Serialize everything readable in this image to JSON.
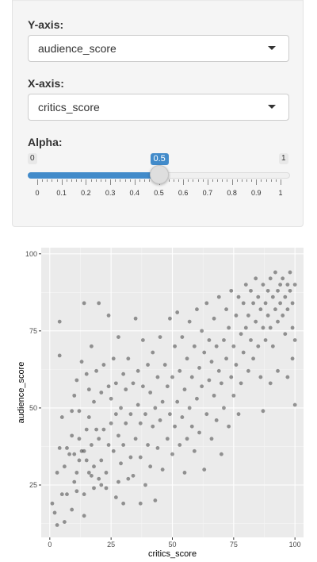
{
  "controls": {
    "y_axis": {
      "label": "Y-axis:",
      "value": "audience_score"
    },
    "x_axis": {
      "label": "X-axis:",
      "value": "critics_score"
    },
    "alpha": {
      "label": "Alpha:",
      "min": "0",
      "max": "1",
      "value": 0.5,
      "value_label": "0.5",
      "ticks": [
        "0",
        "0.1",
        "0.2",
        "0.3",
        "0.4",
        "0.5",
        "0.6",
        "0.7",
        "0.8",
        "0.9",
        "1"
      ]
    }
  },
  "colors": {
    "accent": "#428bca",
    "panel_bg": "#f5f5f5",
    "plot_bg": "#ebebeb",
    "point": "#333333"
  },
  "chart_data": {
    "type": "scatter",
    "title": "",
    "xlabel": "critics_score",
    "ylabel": "audience_score",
    "xlim": [
      0,
      100
    ],
    "ylim": [
      11,
      97
    ],
    "x_ticks": [
      0,
      25,
      50,
      75,
      100
    ],
    "y_ticks": [
      25,
      50,
      75,
      100
    ],
    "grid": true,
    "alpha": 0.5,
    "points": [
      [
        1,
        19
      ],
      [
        2,
        16
      ],
      [
        3,
        12
      ],
      [
        3,
        29
      ],
      [
        4,
        37
      ],
      [
        4,
        67
      ],
      [
        4,
        78
      ],
      [
        5,
        47
      ],
      [
        5,
        22
      ],
      [
        6,
        31
      ],
      [
        6,
        13
      ],
      [
        7,
        22
      ],
      [
        7,
        37
      ],
      [
        8,
        35
      ],
      [
        9,
        17
      ],
      [
        9,
        41
      ],
      [
        9,
        49
      ],
      [
        10,
        26
      ],
      [
        10,
        35
      ],
      [
        10,
        54
      ],
      [
        11,
        23
      ],
      [
        11,
        29
      ],
      [
        11,
        59
      ],
      [
        12,
        33
      ],
      [
        12,
        40
      ],
      [
        12,
        49
      ],
      [
        13,
        36
      ],
      [
        13,
        65
      ],
      [
        14,
        15
      ],
      [
        14,
        22
      ],
      [
        14,
        36
      ],
      [
        14,
        84
      ],
      [
        15,
        33
      ],
      [
        15,
        43
      ],
      [
        15,
        61
      ],
      [
        16,
        29
      ],
      [
        16,
        47
      ],
      [
        16,
        56
      ],
      [
        17,
        28
      ],
      [
        17,
        38
      ],
      [
        17,
        70
      ],
      [
        18,
        31
      ],
      [
        18,
        24
      ],
      [
        18,
        52
      ],
      [
        19,
        43
      ],
      [
        19,
        62
      ],
      [
        20,
        27
      ],
      [
        20,
        40
      ],
      [
        20,
        84
      ],
      [
        21,
        25
      ],
      [
        21,
        33
      ],
      [
        21,
        55
      ],
      [
        22,
        43
      ],
      [
        22,
        64
      ],
      [
        23,
        24
      ],
      [
        23,
        29
      ],
      [
        24,
        38
      ],
      [
        24,
        57
      ],
      [
        24,
        80
      ],
      [
        25,
        45
      ],
      [
        25,
        53
      ],
      [
        26,
        36
      ],
      [
        26,
        66
      ],
      [
        27,
        21
      ],
      [
        27,
        48
      ],
      [
        27,
        58
      ],
      [
        28,
        26
      ],
      [
        28,
        41
      ],
      [
        28,
        73
      ],
      [
        29,
        32
      ],
      [
        29,
        50
      ],
      [
        30,
        19
      ],
      [
        30,
        38
      ],
      [
        30,
        61
      ],
      [
        31,
        45
      ],
      [
        31,
        56
      ],
      [
        32,
        27
      ],
      [
        32,
        66
      ],
      [
        33,
        34
      ],
      [
        33,
        48
      ],
      [
        34,
        28
      ],
      [
        34,
        58
      ],
      [
        35,
        40
      ],
      [
        35,
        79
      ],
      [
        36,
        51
      ],
      [
        36,
        62
      ],
      [
        37,
        19
      ],
      [
        37,
        34
      ],
      [
        37,
        45
      ],
      [
        38,
        57
      ],
      [
        38,
        72
      ],
      [
        39,
        25
      ],
      [
        39,
        48
      ],
      [
        40,
        38
      ],
      [
        40,
        64
      ],
      [
        41,
        31
      ],
      [
        41,
        55
      ],
      [
        42,
        68
      ],
      [
        42,
        44
      ],
      [
        43,
        20
      ],
      [
        43,
        50
      ],
      [
        44,
        37
      ],
      [
        44,
        60
      ],
      [
        45,
        46
      ],
      [
        45,
        73
      ],
      [
        46,
        30
      ],
      [
        46,
        52
      ],
      [
        47,
        64
      ],
      [
        48,
        40
      ],
      [
        48,
        57
      ],
      [
        49,
        48
      ],
      [
        49,
        79
      ],
      [
        50,
        35
      ],
      [
        50,
        60
      ],
      [
        51,
        44
      ],
      [
        51,
        70
      ],
      [
        52,
        52
      ],
      [
        52,
        81
      ],
      [
        53,
        38
      ],
      [
        53,
        62
      ],
      [
        54,
        47
      ],
      [
        54,
        73
      ],
      [
        55,
        29
      ],
      [
        55,
        56
      ],
      [
        56,
        66
      ],
      [
        56,
        40
      ],
      [
        57,
        50
      ],
      [
        57,
        78
      ],
      [
        58,
        44
      ],
      [
        58,
        60
      ],
      [
        59,
        70
      ],
      [
        59,
        36
      ],
      [
        60,
        53
      ],
      [
        60,
        82
      ],
      [
        61,
        42
      ],
      [
        61,
        63
      ],
      [
        62,
        75
      ],
      [
        62,
        57
      ],
      [
        63,
        30
      ],
      [
        63,
        68
      ],
      [
        64,
        48
      ],
      [
        64,
        84
      ],
      [
        65,
        59
      ],
      [
        65,
        72
      ],
      [
        66,
        40
      ],
      [
        66,
        65
      ],
      [
        67,
        54
      ],
      [
        67,
        79
      ],
      [
        68,
        46
      ],
      [
        68,
        70
      ],
      [
        69,
        62
      ],
      [
        69,
        86
      ],
      [
        70,
        35
      ],
      [
        70,
        58
      ],
      [
        71,
        72
      ],
      [
        71,
        50
      ],
      [
        72,
        66
      ],
      [
        72,
        82
      ],
      [
        73,
        44
      ],
      [
        73,
        76
      ],
      [
        74,
        60
      ],
      [
        74,
        88
      ],
      [
        75,
        70
      ],
      [
        75,
        54
      ],
      [
        76,
        80
      ],
      [
        76,
        64
      ],
      [
        77,
        48
      ],
      [
        77,
        86
      ],
      [
        78,
        74
      ],
      [
        78,
        58
      ],
      [
        79,
        84
      ],
      [
        79,
        68
      ],
      [
        80,
        76
      ],
      [
        80,
        90
      ],
      [
        81,
        62
      ],
      [
        81,
        80
      ],
      [
        82,
        88
      ],
      [
        82,
        72
      ],
      [
        83,
        66
      ],
      [
        83,
        84
      ],
      [
        84,
        78
      ],
      [
        84,
        92
      ],
      [
        85,
        70
      ],
      [
        85,
        86
      ],
      [
        86,
        82
      ],
      [
        86,
        60
      ],
      [
        87,
        90
      ],
      [
        87,
        76
      ],
      [
        88,
        84
      ],
      [
        88,
        72
      ],
      [
        89,
        88
      ],
      [
        89,
        80
      ],
      [
        90,
        92
      ],
      [
        90,
        76
      ],
      [
        91,
        86
      ],
      [
        91,
        70
      ],
      [
        92,
        82
      ],
      [
        92,
        94
      ],
      [
        93,
        78
      ],
      [
        93,
        88
      ],
      [
        94,
        84
      ],
      [
        94,
        90
      ],
      [
        95,
        80
      ],
      [
        95,
        92
      ],
      [
        96,
        86
      ],
      [
        96,
        74
      ],
      [
        97,
        90
      ],
      [
        97,
        82
      ],
      [
        98,
        88
      ],
      [
        98,
        94
      ],
      [
        99,
        84
      ],
      [
        99,
        76
      ],
      [
        100,
        90
      ],
      [
        100,
        72
      ],
      [
        100,
        51
      ],
      [
        99,
        66
      ],
      [
        97,
        60
      ],
      [
        93,
        62
      ],
      [
        90,
        58
      ],
      [
        87,
        49
      ]
    ]
  }
}
